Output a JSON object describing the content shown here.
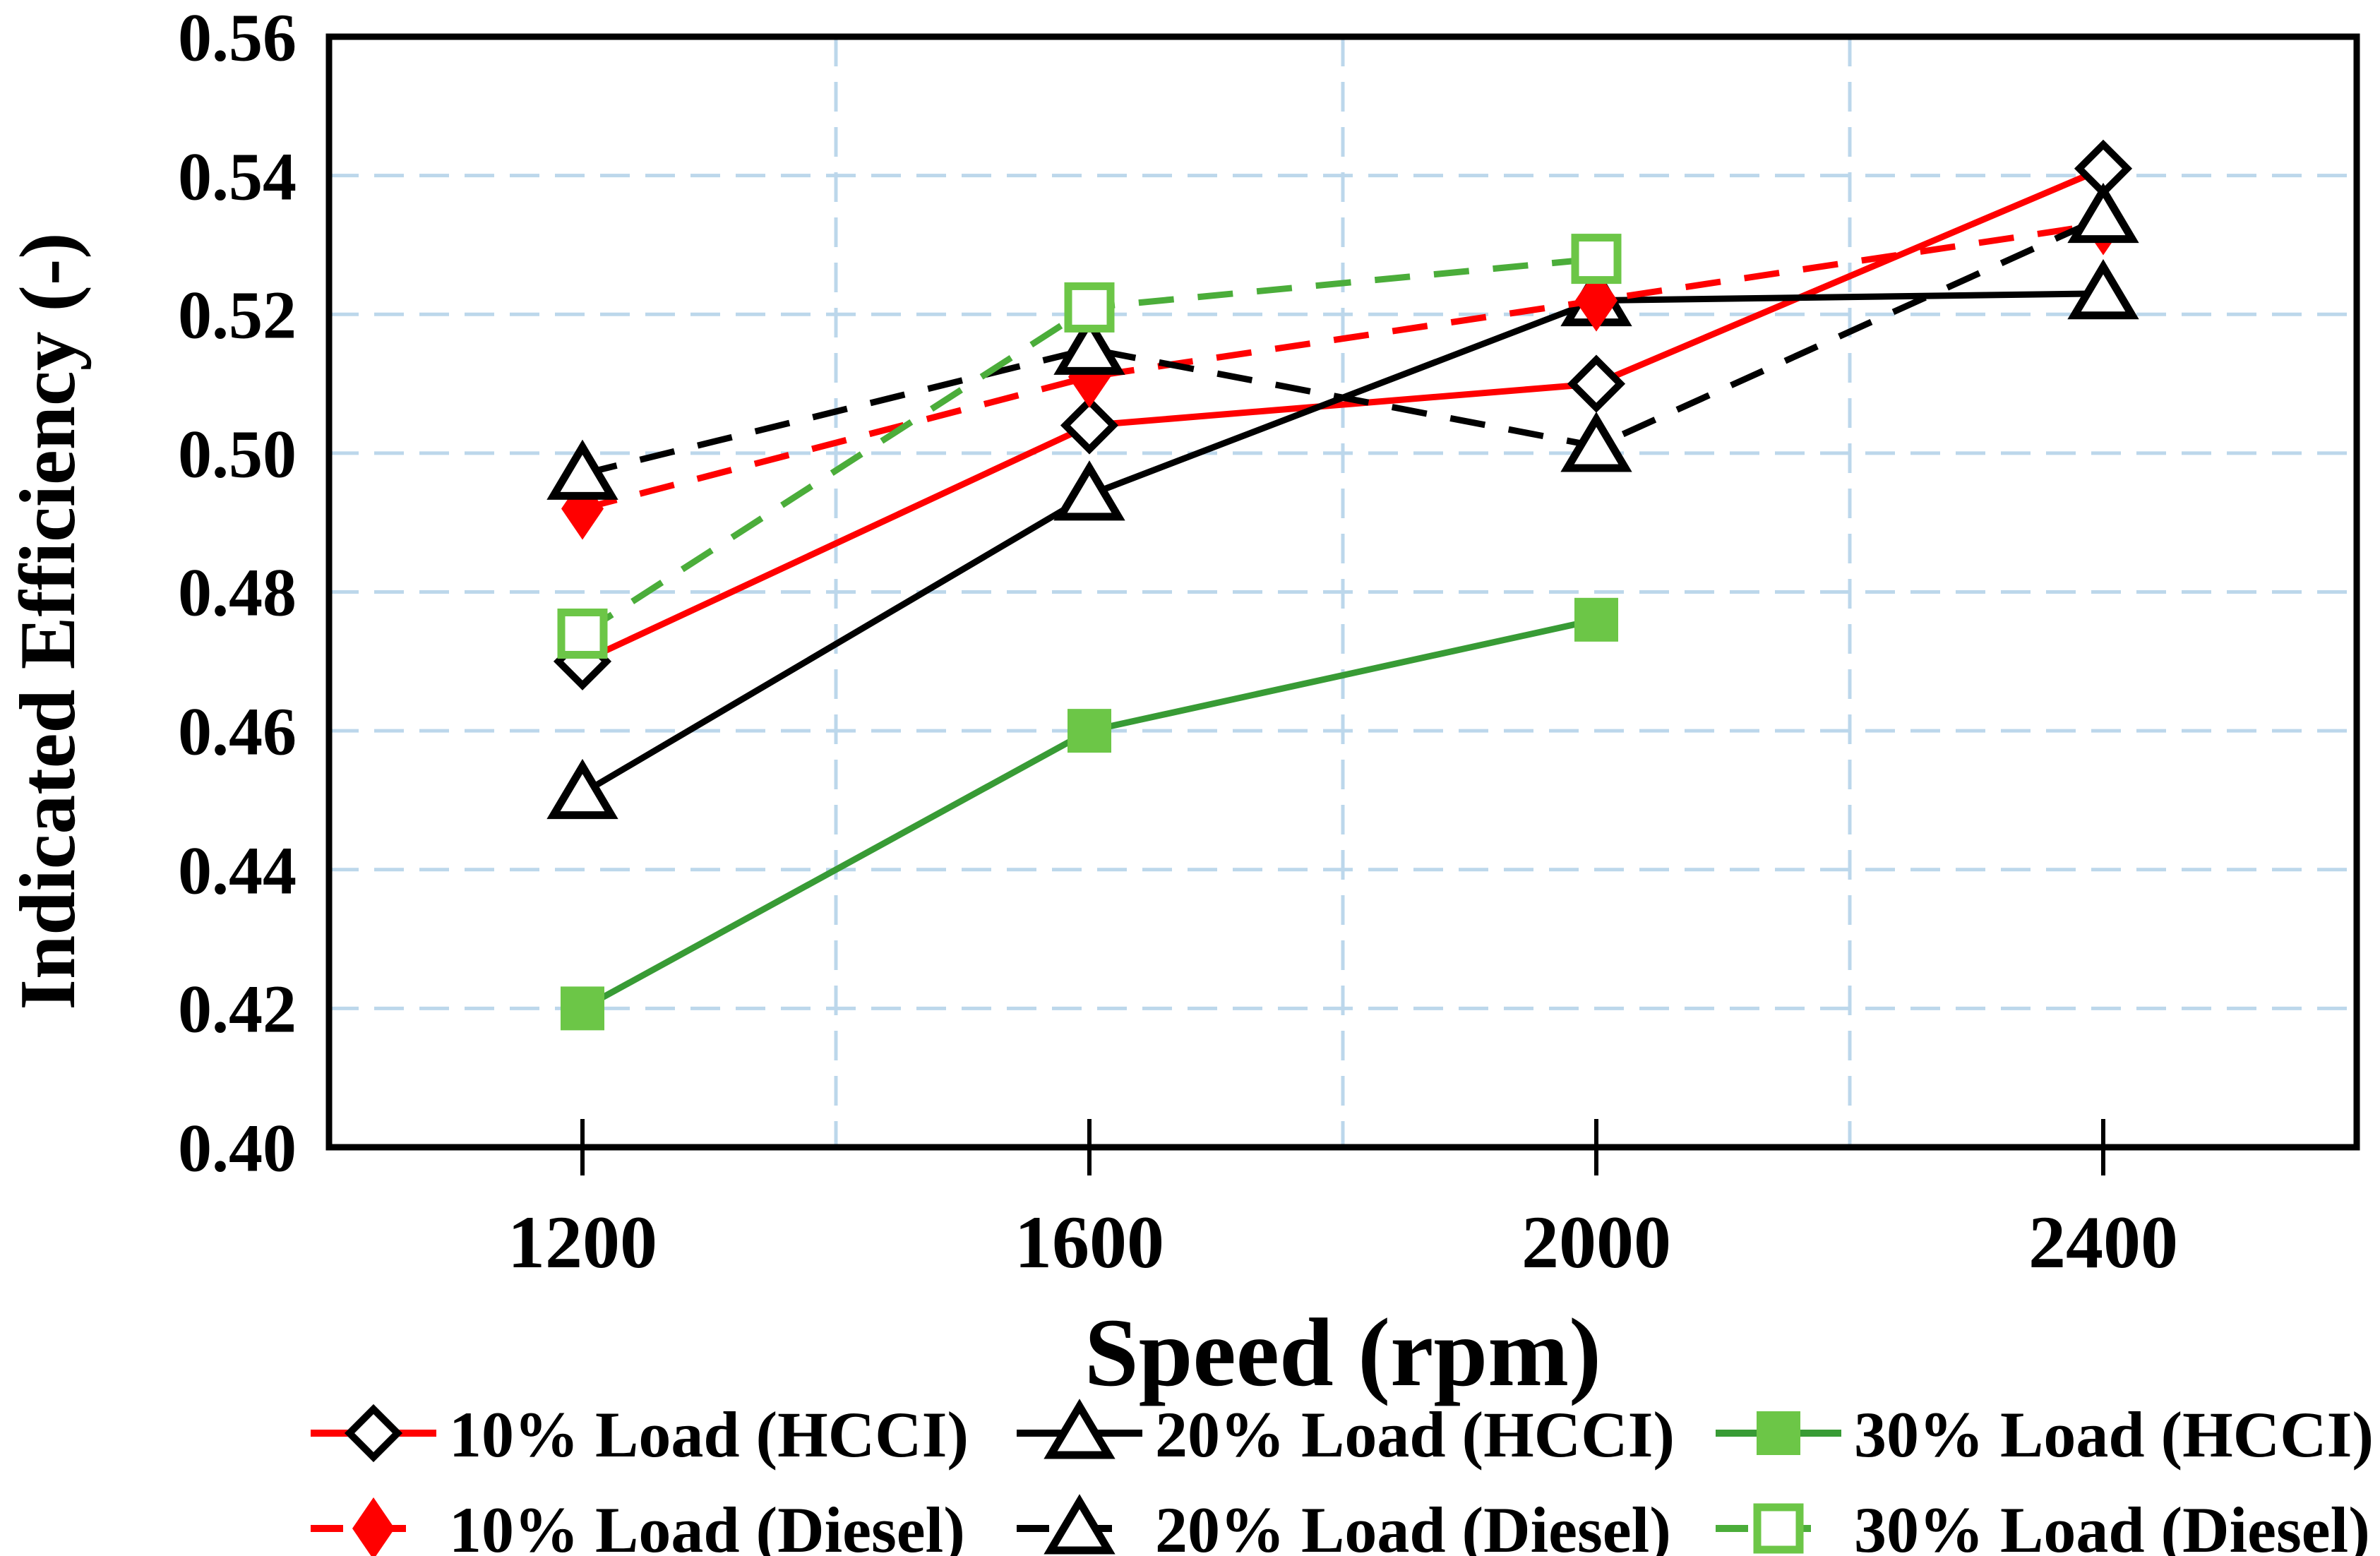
{
  "chart_data": {
    "type": "line",
    "title": "",
    "xlabel": "Speed (rpm)",
    "ylabel": "Indicated Efficiency (-)",
    "x": [
      1200,
      1600,
      2000,
      2400
    ],
    "x_tick_labels": [
      "1200",
      "1600",
      "2000",
      "2400"
    ],
    "y_tick_labels": [
      "0.40",
      "0.42",
      "0.44",
      "0.46",
      "0.48",
      "0.50",
      "0.52",
      "0.54",
      "0.56"
    ],
    "xlim": [
      1000,
      2600
    ],
    "ylim": [
      0.4,
      0.56
    ],
    "grid": true,
    "y_gridline_values": [
      0.42,
      0.44,
      0.46,
      0.48,
      0.5,
      0.52,
      0.54
    ],
    "x_gridline_values": [
      1400,
      1800,
      2200
    ],
    "legend_position": "bottom",
    "legend_rows": [
      [
        0,
        1,
        2
      ],
      [
        3,
        4,
        5
      ]
    ],
    "colors": {
      "grid": "#BCD7EB",
      "axis": "#000000",
      "red": "#FF0000",
      "black": "#000000",
      "green_dark": "#389B35",
      "green_mid": "#4BAD3A",
      "green_light": "#6CC647"
    },
    "series": [
      {
        "name": "10% Load (HCCI)",
        "line": "solid",
        "color": "#FF0000",
        "marker": "diamond-open",
        "marker_fill": "#FFFFFF",
        "marker_stroke": "#000000",
        "values": [
          0.47,
          0.504,
          0.51,
          0.541
        ]
      },
      {
        "name": "20% Load (HCCI)",
        "line": "solid",
        "color": "#000000",
        "marker": "triangle-open",
        "marker_fill": "#FFFFFF",
        "marker_stroke": "#000000",
        "values": [
          0.451,
          0.494,
          0.522,
          0.523
        ]
      },
      {
        "name": "30% Load (HCCI)",
        "line": "solid",
        "color": "#389B35",
        "marker": "square-filled",
        "marker_fill": "#6CC647",
        "marker_stroke": "#6CC647",
        "values": [
          0.42,
          0.46,
          0.476,
          null
        ]
      },
      {
        "name": "10% Load (Diesel)",
        "line": "dashed",
        "color": "#FF0000",
        "marker": "diamond-filled",
        "marker_fill": "#FF0000",
        "marker_stroke": "#FF0000",
        "values": [
          0.492,
          0.511,
          0.522,
          0.533
        ]
      },
      {
        "name": "20% Load (Diesel)",
        "line": "dashed",
        "color": "#000000",
        "marker": "triangle-open",
        "marker_fill": "#FFFFFF",
        "marker_stroke": "#000000",
        "values": [
          0.497,
          0.515,
          0.501,
          0.534
        ]
      },
      {
        "name": "30% Load (Diesel)",
        "line": "dashed",
        "color": "#4BAD3A",
        "marker": "square-open",
        "marker_fill": "#FFFFFF",
        "marker_stroke": "#6CC647",
        "values": [
          0.474,
          0.521,
          0.528,
          null
        ]
      }
    ]
  }
}
